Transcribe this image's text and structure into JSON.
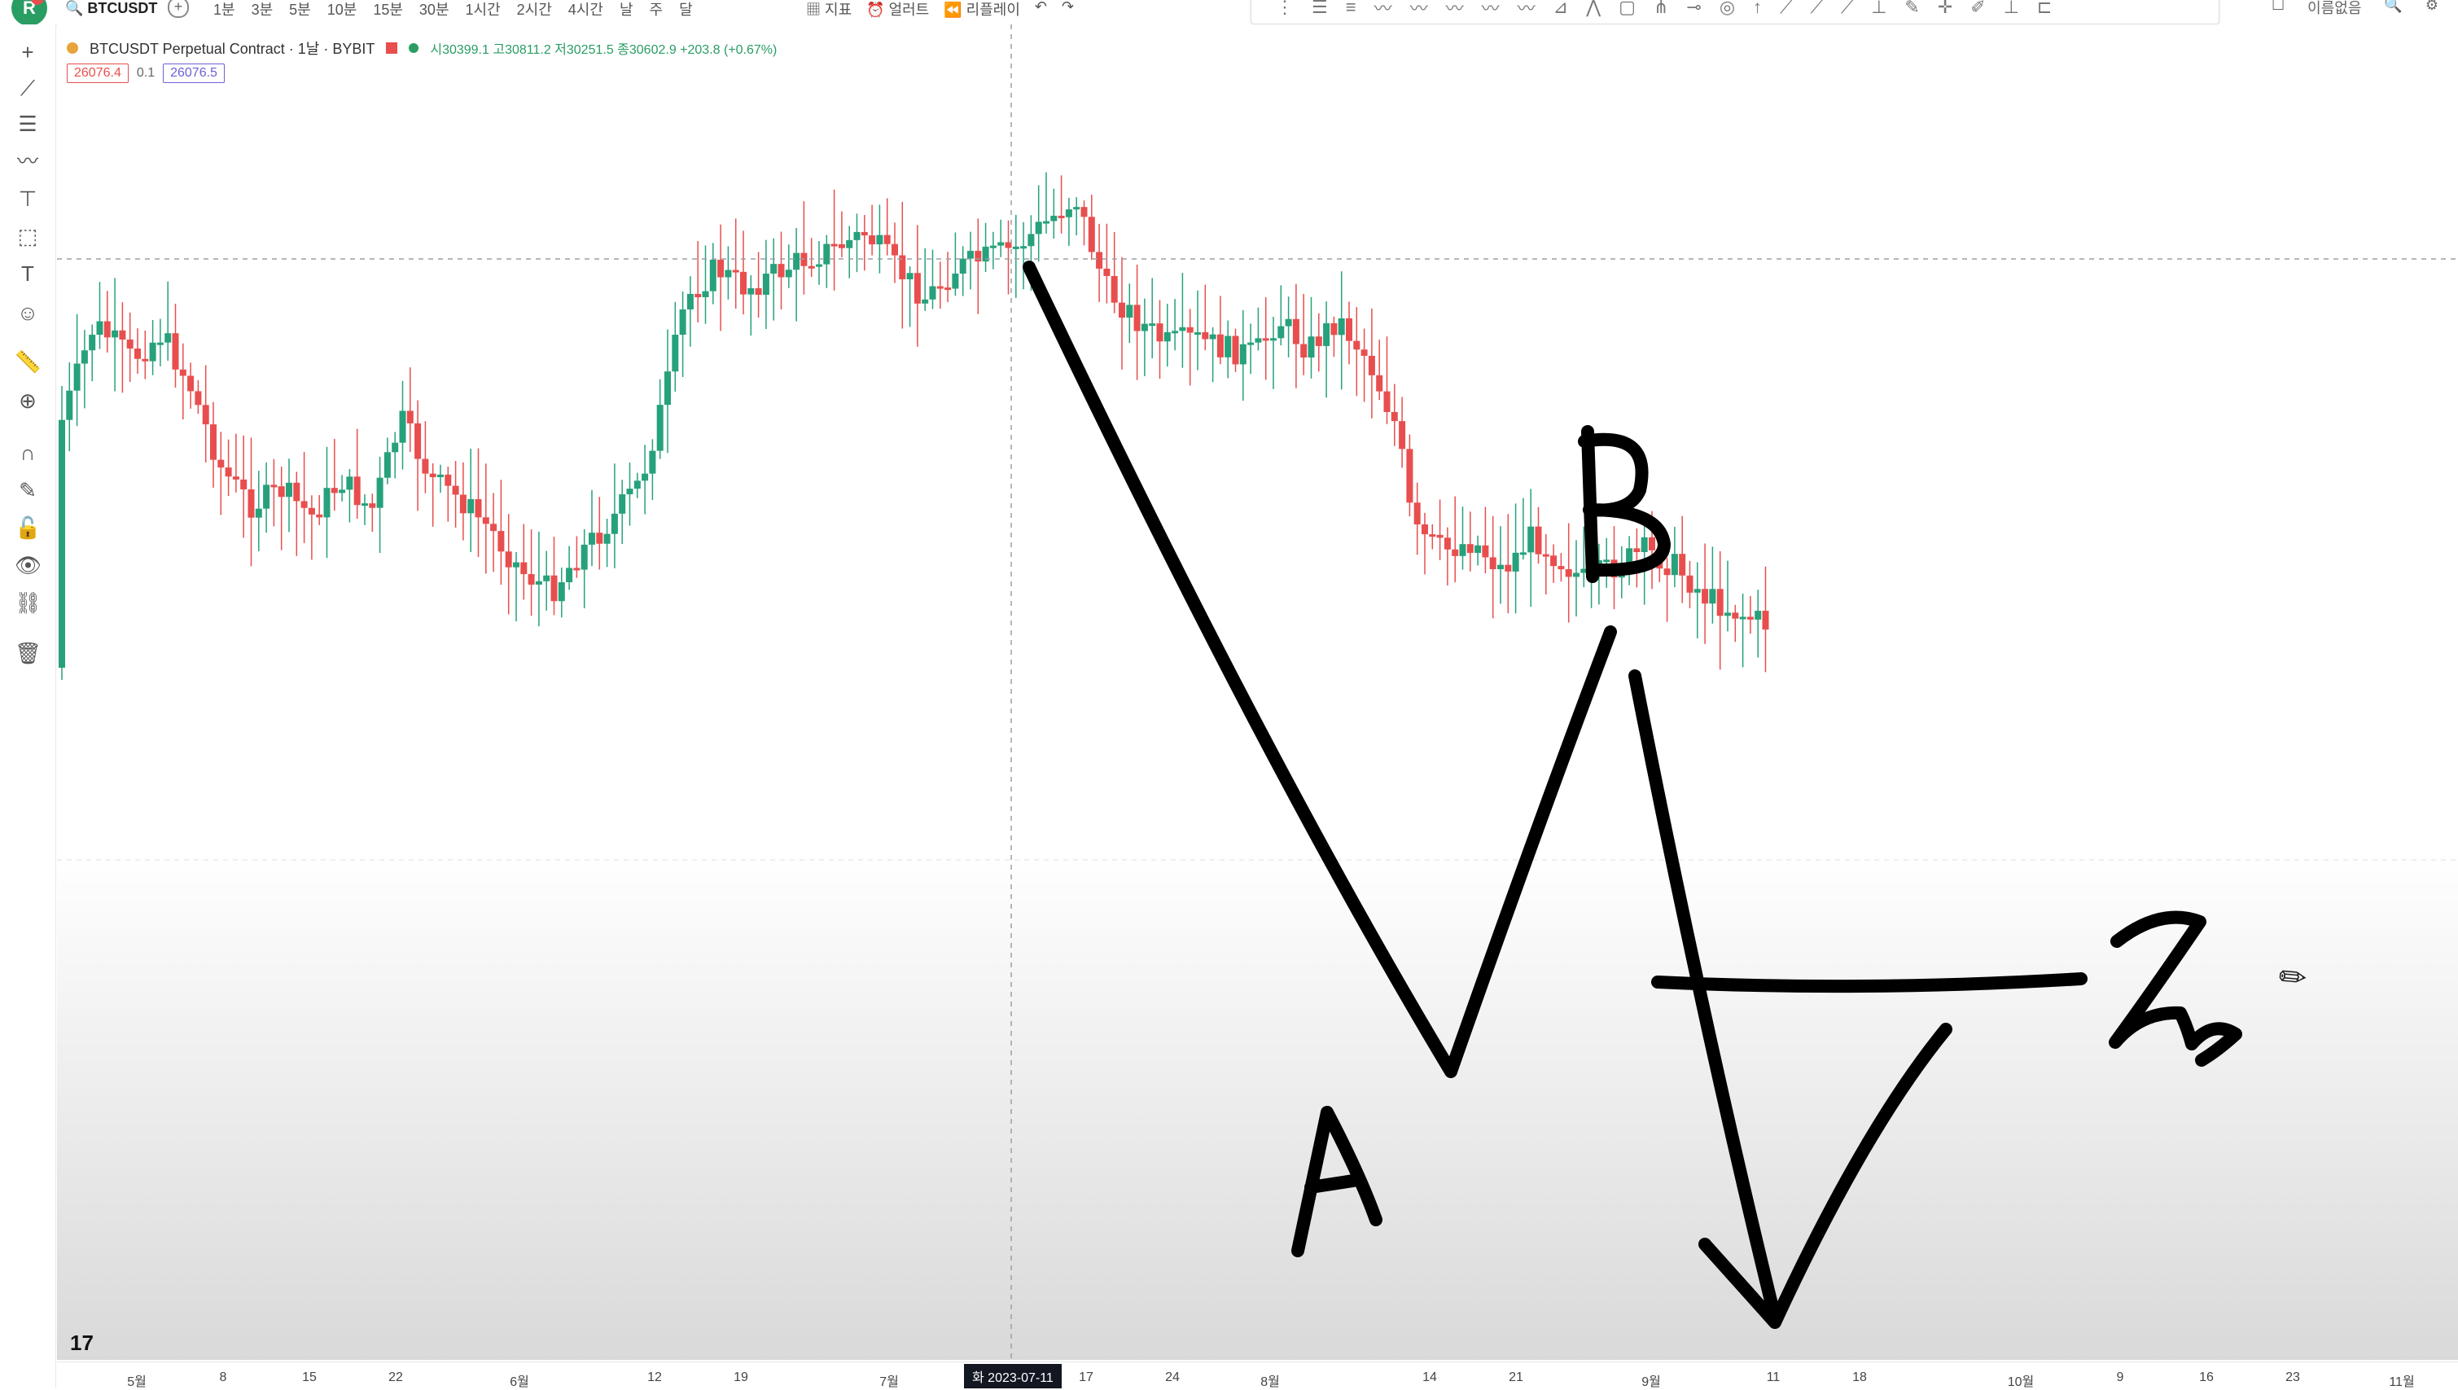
{
  "topbar": {
    "logo": "R",
    "symbol": "BTCUSDT",
    "add_icon": "+",
    "intervals": [
      "1분",
      "3분",
      "5분",
      "10분",
      "15분",
      "30분",
      "1시간",
      "2시간",
      "4시간",
      "날",
      "주",
      "달"
    ],
    "tools": [
      "지표",
      "얼러트",
      "리플레이"
    ],
    "corner_label": "이름없음"
  },
  "legend": {
    "title": "BTCUSDT Perpetual Contract · 1날 · BYBIT",
    "ohlc": "시30399.1  고30811.2  저30251.5  종30602.9  +203.8 (+0.67%)",
    "bid": "26076.4",
    "step": "0.1",
    "ask": "26076.5"
  },
  "xaxis": {
    "labels": [
      "5월",
      "8",
      "15",
      "22",
      "6월",
      "12",
      "19",
      "7월",
      "17",
      "24",
      "8월",
      "14",
      "21",
      "9월",
      "11",
      "18",
      "10월",
      "9",
      "16",
      "23",
      "11월"
    ],
    "crosshair_label": "화 2023-07-11"
  },
  "annotations": {
    "label_a": "A",
    "label_b": "B"
  },
  "branding": {
    "logo": "17"
  },
  "colors": {
    "up": "#26a17b",
    "down": "#e84e4e",
    "ink": "#000000"
  }
}
